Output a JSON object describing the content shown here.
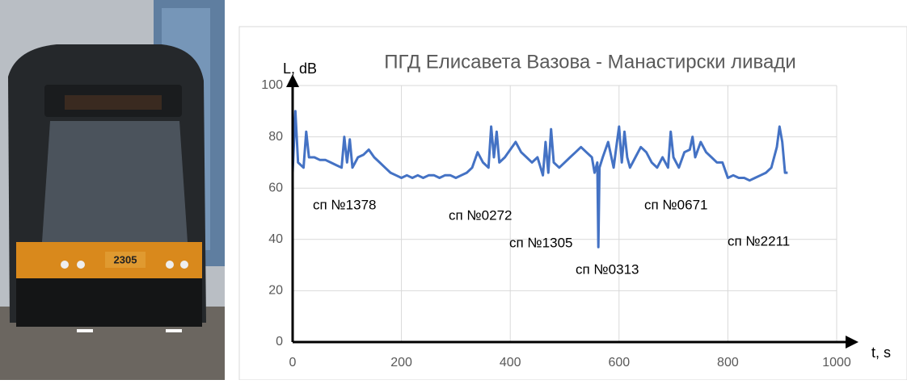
{
  "photo_label": "2305",
  "chart_data": {
    "type": "line",
    "title": "ПГД Елисавета Вазова - Манастирски ливади",
    "y_label": "L, dB",
    "x_label": "t, s",
    "color": "#4472c4",
    "x": [
      0,
      5,
      10,
      20,
      25,
      30,
      40,
      50,
      60,
      70,
      80,
      90,
      95,
      100,
      105,
      110,
      120,
      130,
      140,
      150,
      160,
      170,
      180,
      190,
      200,
      210,
      220,
      230,
      240,
      250,
      260,
      270,
      280,
      290,
      300,
      310,
      320,
      330,
      340,
      350,
      360,
      365,
      370,
      375,
      380,
      390,
      400,
      410,
      420,
      430,
      440,
      450,
      460,
      465,
      470,
      475,
      480,
      490,
      500,
      510,
      520,
      530,
      540,
      550,
      555,
      560,
      562,
      564,
      570,
      580,
      590,
      595,
      600,
      605,
      610,
      615,
      620,
      630,
      640,
      650,
      660,
      670,
      680,
      690,
      695,
      700,
      710,
      720,
      730,
      735,
      740,
      750,
      760,
      770,
      780,
      790,
      800,
      810,
      820,
      830,
      840,
      850,
      860,
      870,
      880,
      890,
      895,
      900,
      905,
      910
    ],
    "values": [
      66,
      90,
      70,
      68,
      82,
      72,
      72,
      71,
      71,
      70,
      69,
      68,
      80,
      70,
      79,
      68,
      72,
      73,
      75,
      72,
      70,
      68,
      66,
      65,
      64,
      65,
      64,
      65,
      64,
      65,
      65,
      64,
      65,
      65,
      64,
      65,
      66,
      68,
      74,
      70,
      68,
      84,
      72,
      82,
      70,
      72,
      75,
      78,
      74,
      72,
      70,
      72,
      65,
      78,
      66,
      83,
      70,
      68,
      70,
      72,
      74,
      76,
      74,
      72,
      66,
      70,
      37,
      68,
      72,
      78,
      68,
      76,
      84,
      70,
      82,
      72,
      68,
      72,
      76,
      74,
      70,
      68,
      72,
      68,
      82,
      72,
      68,
      74,
      75,
      80,
      72,
      78,
      74,
      72,
      70,
      70,
      64,
      65,
      64,
      64,
      63,
      64,
      65,
      66,
      68,
      76,
      84,
      78,
      66,
      66
    ],
    "xlim": [
      0,
      1000
    ],
    "ylim": [
      0,
      100
    ],
    "xticks": [
      0,
      200,
      400,
      600,
      800,
      1000
    ],
    "yticks": [
      0,
      20,
      40,
      60,
      80,
      100
    ],
    "grid": true,
    "annotations": [
      "сп №1378",
      "сп №0272",
      "сп №1305",
      "сп №0313",
      "сп №0671",
      "сп №2211"
    ]
  }
}
